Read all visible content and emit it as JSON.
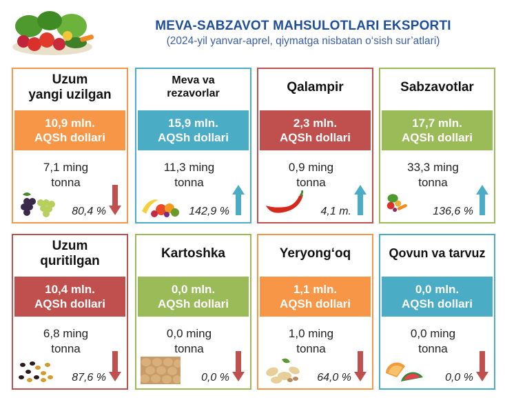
{
  "header": {
    "title": "MEVA-SABZAVOT MAHSULOTLARI EKSPORTI",
    "subtitle": "(2024-yil yanvar-aprel, qiymatga nisbatan o‘sish sur’atlari)"
  },
  "colors": {
    "orange": "#f79646",
    "blue": "#4bacc6",
    "red": "#c0504d",
    "green": "#9bbb59",
    "title": "#1f4e9a"
  },
  "cards": [
    {
      "name1": "Uzum",
      "name2": "yangi uzilgan",
      "value": "10,9 mln.",
      "unit": "AQSh dollari",
      "vol1": "7,1 ming",
      "vol2": "tonna",
      "pct": "80,4 %",
      "trend": "down",
      "color": "orange",
      "icon": "grapes-icon"
    },
    {
      "name1": "Meva va",
      "name2": "rezavorlar",
      "value": "15,9 mln.",
      "unit": "AQSh dollari",
      "vol1": "11,3 ming",
      "vol2": "tonna",
      "pct": "142,9 %",
      "trend": "up",
      "color": "blue",
      "icon": "fruits-icon"
    },
    {
      "name1": "Qalampir",
      "name2": "",
      "value": "2,3 mln.",
      "unit": "AQSh dollari",
      "vol1": "0,9 ming",
      "vol2": "tonna",
      "pct": "4,1 m.",
      "trend": "up",
      "color": "red",
      "icon": "pepper-icon"
    },
    {
      "name1": "Sabzavotlar",
      "name2": "",
      "value": "17,7 mln.",
      "unit": "AQSh dollari",
      "vol1": "33,3 ming",
      "vol2": "tonna",
      "pct": "136,6 %",
      "trend": "up",
      "color": "green",
      "icon": "vegetables-icon"
    },
    {
      "name1": "Uzum",
      "name2": "quritilgan",
      "value": "10,4 mln.",
      "unit": "AQSh dollari",
      "vol1": "6,8 ming",
      "vol2": "tonna",
      "pct": "87,6 %",
      "trend": "down",
      "color": "red",
      "icon": "raisins-icon"
    },
    {
      "name1": "Kartoshka",
      "name2": "",
      "value": "0,0 mln.",
      "unit": "AQSh dollari",
      "vol1": "0,0 ming",
      "vol2": "tonna",
      "pct": "0,0 %",
      "trend": "down",
      "color": "green",
      "icon": "potatoes-icon"
    },
    {
      "name1": "Yeryong‘oq",
      "name2": "",
      "value": "1,1 mln.",
      "unit": "AQSh dollari",
      "vol1": "1,0 ming",
      "vol2": "tonna",
      "pct": "64,0 %",
      "trend": "down",
      "color": "orange",
      "icon": "peanuts-icon"
    },
    {
      "name1": "Qovun va tarvuz",
      "name2": "",
      "value": "0,0 mln.",
      "unit": "AQSh dollari",
      "vol1": "0,0 ming",
      "vol2": "tonna",
      "pct": "0,0 %",
      "trend": "down",
      "color": "blue",
      "icon": "melons-icon"
    }
  ]
}
